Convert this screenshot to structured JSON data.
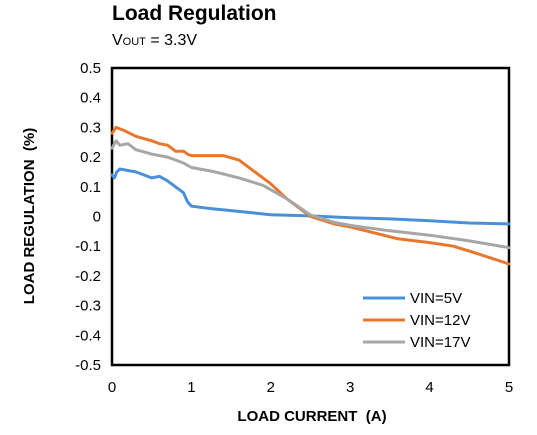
{
  "chart_data": {
    "type": "line",
    "title": "Load Regulation",
    "subtitle": {
      "prefix": "V",
      "sub": "OUT",
      "suffix": " = 3.3V"
    },
    "xlabel": "LOAD CURRENT  (A)",
    "ylabel": "LOAD REGULATION  (%)",
    "xlim": [
      0,
      5
    ],
    "ylim": [
      -0.5,
      0.5
    ],
    "x_ticks": [
      "0",
      "1",
      "2",
      "3",
      "4",
      "5"
    ],
    "y_ticks": [
      "0.5",
      "0.4",
      "0.3",
      "0.2",
      "0.1",
      "0",
      "-0.1",
      "-0.2",
      "-0.3",
      "-0.4",
      "-0.5"
    ],
    "grid": false,
    "legend_position": "bottom-right",
    "series": [
      {
        "name": "VIN=5V",
        "color": "#4a90d9",
        "points": [
          [
            0,
            0.14
          ],
          [
            0.03,
            0.13
          ],
          [
            0.06,
            0.15
          ],
          [
            0.1,
            0.16
          ],
          [
            0.2,
            0.155
          ],
          [
            0.3,
            0.15
          ],
          [
            0.4,
            0.14
          ],
          [
            0.5,
            0.13
          ],
          [
            0.6,
            0.135
          ],
          [
            0.7,
            0.12
          ],
          [
            0.8,
            0.1
          ],
          [
            0.9,
            0.08
          ],
          [
            0.95,
            0.05
          ],
          [
            1.0,
            0.035
          ],
          [
            1.2,
            0.028
          ],
          [
            1.5,
            0.02
          ],
          [
            2.0,
            0.006
          ],
          [
            2.5,
            0.002
          ],
          [
            3.0,
            -0.004
          ],
          [
            3.5,
            -0.008
          ],
          [
            4.0,
            -0.014
          ],
          [
            4.5,
            -0.022
          ],
          [
            5.0,
            -0.025
          ]
        ]
      },
      {
        "name": "VIN=12V",
        "color": "#e8772e",
        "points": [
          [
            0,
            0.28
          ],
          [
            0.05,
            0.3
          ],
          [
            0.15,
            0.29
          ],
          [
            0.3,
            0.27
          ],
          [
            0.5,
            0.255
          ],
          [
            0.6,
            0.245
          ],
          [
            0.7,
            0.24
          ],
          [
            0.8,
            0.22
          ],
          [
            0.9,
            0.22
          ],
          [
            0.95,
            0.21
          ],
          [
            1.0,
            0.205
          ],
          [
            1.2,
            0.205
          ],
          [
            1.4,
            0.205
          ],
          [
            1.6,
            0.19
          ],
          [
            1.8,
            0.15
          ],
          [
            2.0,
            0.11
          ],
          [
            2.2,
            0.06
          ],
          [
            2.5,
            0.0
          ],
          [
            2.8,
            -0.025
          ],
          [
            3.0,
            -0.035
          ],
          [
            3.3,
            -0.055
          ],
          [
            3.6,
            -0.075
          ],
          [
            4.0,
            -0.088
          ],
          [
            4.3,
            -0.1
          ],
          [
            4.6,
            -0.125
          ],
          [
            5.0,
            -0.16
          ]
        ]
      },
      {
        "name": "VIN=17V",
        "color": "#a6a6a6",
        "points": [
          [
            0,
            0.23
          ],
          [
            0.05,
            0.255
          ],
          [
            0.1,
            0.24
          ],
          [
            0.2,
            0.245
          ],
          [
            0.3,
            0.225
          ],
          [
            0.5,
            0.21
          ],
          [
            0.7,
            0.2
          ],
          [
            0.9,
            0.18
          ],
          [
            1.0,
            0.165
          ],
          [
            1.3,
            0.15
          ],
          [
            1.6,
            0.13
          ],
          [
            1.9,
            0.105
          ],
          [
            2.2,
            0.06
          ],
          [
            2.5,
            0.005
          ],
          [
            2.8,
            -0.02
          ],
          [
            3.0,
            -0.03
          ],
          [
            3.5,
            -0.048
          ],
          [
            4.0,
            -0.063
          ],
          [
            4.5,
            -0.082
          ],
          [
            5.0,
            -0.105
          ]
        ]
      }
    ]
  }
}
